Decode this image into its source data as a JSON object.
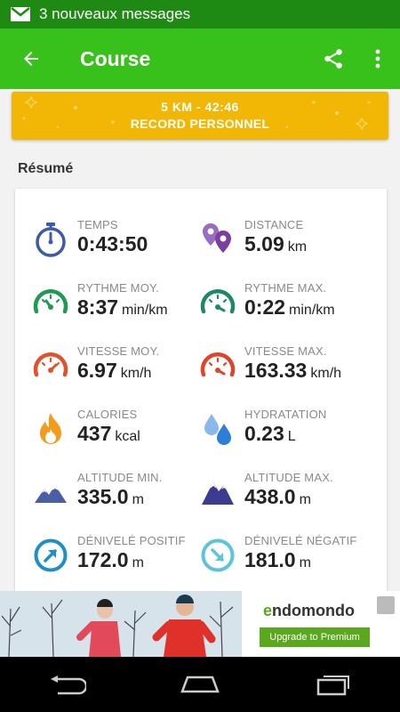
{
  "status_bar": {
    "notification": "3 nouveaux messages",
    "icon": "gmail-icon"
  },
  "app_bar": {
    "title": "Course",
    "back_icon": "arrow-back-icon",
    "share_icon": "share-icon",
    "menu_icon": "more-vert-icon",
    "color": "#37c11a"
  },
  "record": {
    "line1": "5 KM  -  42:46",
    "line2": "RECORD PERSONNEL",
    "color": "#f2b705"
  },
  "summary": {
    "title": "Résumé",
    "stats": [
      {
        "label": "TEMPS",
        "value": "0:43:50",
        "unit": "",
        "icon": "stopwatch-icon"
      },
      {
        "label": "DISTANCE",
        "value": "5.09",
        "unit": "km",
        "icon": "map-pins-icon"
      },
      {
        "label": "RYTHME MOY.",
        "value": "8:37",
        "unit": "min/km",
        "icon": "pace-avg-gauge-icon"
      },
      {
        "label": "RYTHME MAX.",
        "value": "0:22",
        "unit": "min/km",
        "icon": "pace-max-gauge-icon"
      },
      {
        "label": "VITESSE MOY.",
        "value": "6.97",
        "unit": "km/h",
        "icon": "speed-avg-gauge-icon"
      },
      {
        "label": "VITESSE MAX.",
        "value": "163.33",
        "unit": "km/h",
        "icon": "speed-max-gauge-icon"
      },
      {
        "label": "CALORIES",
        "value": "437",
        "unit": "kcal",
        "icon": "flame-icon"
      },
      {
        "label": "HYDRATATION",
        "value": "0.23",
        "unit": "L",
        "icon": "water-drops-icon"
      },
      {
        "label": "ALTITUDE MIN.",
        "value": "335.0",
        "unit": "m",
        "icon": "mountain-min-icon"
      },
      {
        "label": "ALTITUDE MAX.",
        "value": "438.0",
        "unit": "m",
        "icon": "mountain-max-icon"
      },
      {
        "label": "DÉNIVELÉ POSITIF",
        "value": "172.0",
        "unit": "m",
        "icon": "ascent-arrow-icon"
      },
      {
        "label": "DÉNIVELÉ NÉGATIF",
        "value": "181.0",
        "unit": "m",
        "icon": "descent-arrow-icon"
      }
    ]
  },
  "ad": {
    "brand": "endomondo",
    "brand_first": "e",
    "brand_rest": "ndomondo",
    "button": "Upgrade to Premium"
  },
  "nav_bar": {
    "back": "nav-back-icon",
    "home": "nav-home-icon",
    "recents": "nav-recents-icon"
  }
}
